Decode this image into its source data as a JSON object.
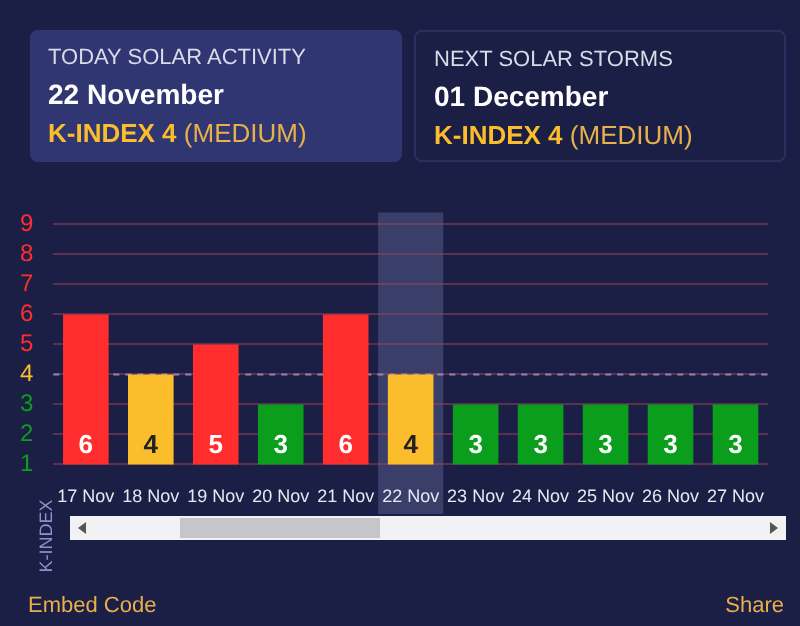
{
  "chart_data": {
    "type": "bar",
    "categories": [
      "17 Nov",
      "18 Nov",
      "19 Nov",
      "20 Nov",
      "21 Nov",
      "22 Nov",
      "23 Nov",
      "24 Nov",
      "25 Nov",
      "26 Nov",
      "27 Nov"
    ],
    "values": [
      6,
      4,
      5,
      3,
      6,
      4,
      3,
      3,
      3,
      3,
      3
    ],
    "colors": [
      "#ff2d2d",
      "#fbbd2c",
      "#ff2d2d",
      "#0b9e1c",
      "#ff2d2d",
      "#fbbd2c",
      "#0b9e1c",
      "#0b9e1c",
      "#0b9e1c",
      "#0b9e1c",
      "#0b9e1c"
    ],
    "ylabel": "K-INDEX",
    "ylim": [
      1,
      9
    ],
    "yticks": [
      1,
      2,
      3,
      4,
      5,
      6,
      7,
      8,
      9
    ],
    "grid": "y",
    "legend": false,
    "data_labels": true,
    "ref_lines": [
      {
        "axis": "y",
        "value": 4,
        "line_style": "dashed",
        "color": "#8a8aa8"
      }
    ],
    "bands": [
      {
        "axis": "x",
        "from": "22 Nov",
        "to": "22 Nov",
        "color": "#3a3f6a"
      }
    ],
    "annotations": [
      "TODAY SOLAR ACTIVITY",
      "22 November",
      "K-INDEX 4",
      "(MEDIUM)",
      "NEXT SOLAR STORMS",
      "01 December",
      "K-INDEX 4",
      "(MEDIUM)",
      "Embed Code",
      "Share"
    ]
  }
}
